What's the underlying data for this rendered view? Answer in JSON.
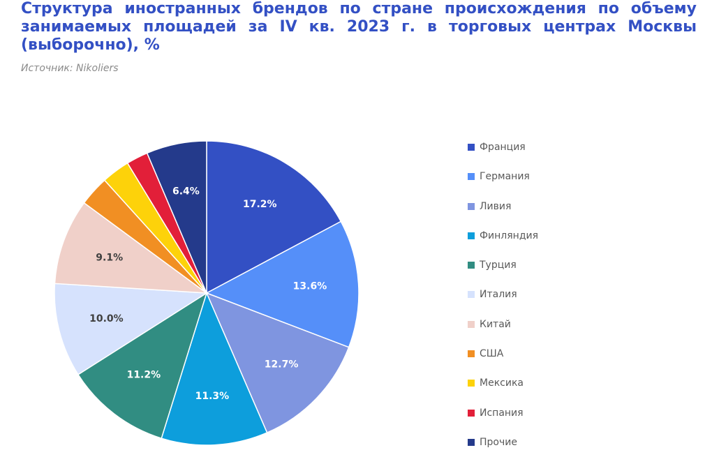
{
  "title": "Структура иностранных брендов по стране происхождения по объему занимаемых площадей за IV кв. 2023 г. в торговых центрах Москвы (выборочно), %",
  "source": "Источник: Nikoliers",
  "chart_data": {
    "type": "pie",
    "title": "Структура иностранных брендов по стране происхождения по объему занимаемых площадей за IV кв. 2023 г. в торговых центрах Москвы (выборочно), %",
    "legend_position": "right",
    "slices": [
      {
        "name": "Франция",
        "value": 17.2,
        "label": "17.2%",
        "color": "#3350c4",
        "label_color": "#ffffff"
      },
      {
        "name": "Германия",
        "value": 13.6,
        "label": "13.6%",
        "color": "#558ff9",
        "label_color": "#ffffff"
      },
      {
        "name": "Ливия",
        "value": 12.7,
        "label": "12.7%",
        "color": "#7f95e0",
        "label_color": "#ffffff"
      },
      {
        "name": "Финляндия",
        "value": 11.3,
        "label": "11.3%",
        "color": "#0d9edc",
        "label_color": "#ffffff"
      },
      {
        "name": "Турция",
        "value": 11.2,
        "label": "11.2%",
        "color": "#318d82",
        "label_color": "#ffffff"
      },
      {
        "name": "Италия",
        "value": 10.0,
        "label": "10.0%",
        "color": "#d6e2fd",
        "label_color": "#404040"
      },
      {
        "name": "Китай",
        "value": 9.1,
        "label": "9.1%",
        "color": "#f0d0c9",
        "label_color": "#404040"
      },
      {
        "name": "США",
        "value": 3.2,
        "label": "",
        "color": "#f18f23",
        "label_color": "#ffffff"
      },
      {
        "name": "Мексика",
        "value": 3.0,
        "label": "",
        "color": "#fdd20a",
        "label_color": "#ffffff"
      },
      {
        "name": "Испания",
        "value": 2.3,
        "label": "",
        "color": "#e21f39",
        "label_color": "#ffffff"
      },
      {
        "name": "Прочие",
        "value": 6.4,
        "label": "6.4%",
        "color": "#243a8b",
        "label_color": "#ffffff"
      }
    ]
  }
}
